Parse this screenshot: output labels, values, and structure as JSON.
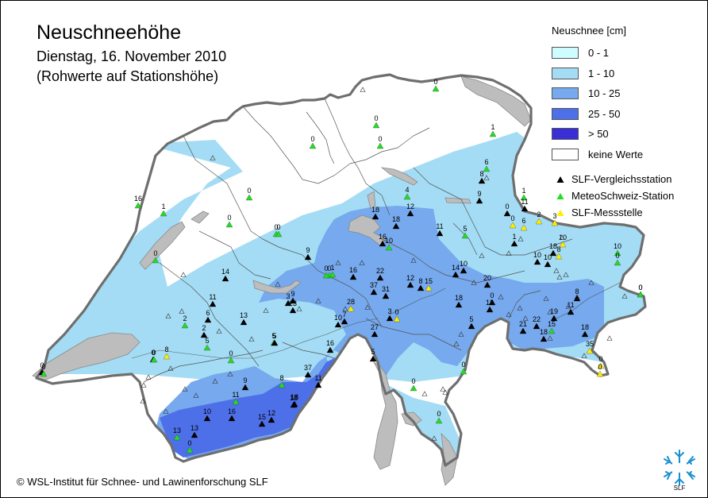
{
  "header": {
    "title": "Neuschneehöhe",
    "date": "Dienstag, 16. November 2010",
    "note": "(Rohwerte auf Stationshöhe)"
  },
  "legend": {
    "heading": "Neuschnee [cm]",
    "classes": [
      {
        "label": "0 - 1",
        "color": "#cffcff"
      },
      {
        "label": "1 - 10",
        "color": "#a3dcf4"
      },
      {
        "label": "10 - 25",
        "color": "#76a9ed"
      },
      {
        "label": "25 - 50",
        "color": "#4d6fe8"
      },
      {
        "label": "> 50",
        "color": "#3a2fd6"
      },
      {
        "label": "keine Werte",
        "color": "#ffffff"
      }
    ],
    "station_types": [
      {
        "label": "SLF-Vergleichsstation",
        "color": "#000000"
      },
      {
        "label": "MeteoSchweiz-Station",
        "color": "#22dd22"
      },
      {
        "label": "SLF-Messstelle",
        "color": "#ffee00"
      }
    ]
  },
  "colors": {
    "lake": "#bdbdbd",
    "border": "#6e6e6e",
    "canton_line": "#555555",
    "logo": "#1a8fd0"
  },
  "stations": [
    {
      "v": "0",
      "t": "G"
    },
    {
      "v": "0",
      "t": "G"
    },
    {
      "v": "0",
      "t": "G"
    },
    {
      "v": "0",
      "t": "G"
    },
    {
      "v": "1",
      "t": "G"
    },
    {
      "v": "16",
      "t": "G"
    },
    {
      "v": "1",
      "t": "G"
    },
    {
      "v": "0",
      "t": "G"
    },
    {
      "v": "0",
      "t": "G"
    },
    {
      "v": "0",
      "t": "G"
    },
    {
      "v": "0",
      "t": "G"
    },
    {
      "v": "0",
      "t": "G"
    },
    {
      "v": "9",
      "t": "B"
    },
    {
      "v": "14",
      "t": "B"
    },
    {
      "v": "11",
      "t": "B"
    },
    {
      "v": "6",
      "t": "B"
    },
    {
      "v": "2",
      "t": "G"
    },
    {
      "v": "2",
      "t": "B"
    },
    {
      "v": "5",
      "t": "G"
    },
    {
      "v": "13",
      "t": "B"
    },
    {
      "v": "0",
      "t": "G"
    },
    {
      "v": "8",
      "t": "Y"
    },
    {
      "v": "0",
      "t": "B"
    },
    {
      "v": "3",
      "t": "B"
    },
    {
      "v": "9",
      "t": "B"
    },
    {
      "v": "23",
      "t": "B"
    },
    {
      "v": "5",
      "t": "G"
    },
    {
      "v": "0",
      "t": "G"
    },
    {
      "v": "1",
      "t": "G"
    },
    {
      "v": "0",
      "t": "G"
    },
    {
      "v": "4",
      "t": "G"
    },
    {
      "v": "12",
      "t": "B"
    },
    {
      "v": "18",
      "t": "B"
    },
    {
      "v": "18",
      "t": "B"
    },
    {
      "v": "16",
      "t": "B"
    },
    {
      "v": "10",
      "t": "G"
    },
    {
      "v": "11",
      "t": "B"
    },
    {
      "v": "5",
      "t": "G"
    },
    {
      "v": "6",
      "t": "G"
    },
    {
      "v": "8",
      "t": "B"
    },
    {
      "v": "9",
      "t": "B"
    },
    {
      "v": "1",
      "t": "G"
    },
    {
      "v": "11",
      "t": "B"
    },
    {
      "v": "0",
      "t": "Y"
    },
    {
      "v": "0",
      "t": "B"
    },
    {
      "v": "6",
      "t": "Y"
    },
    {
      "v": "2",
      "t": "Y"
    },
    {
      "v": "3",
      "t": "Y"
    },
    {
      "v": "10",
      "t": "Y"
    },
    {
      "v": "1",
      "t": "B"
    },
    {
      "v": "10",
      "t": "B"
    },
    {
      "v": "18",
      "t": "B"
    },
    {
      "v": "8",
      "t": "Y"
    },
    {
      "v": "10",
      "t": "G"
    },
    {
      "v": "16",
      "t": "B"
    },
    {
      "v": "22",
      "t": "B"
    },
    {
      "v": "37",
      "t": "B"
    },
    {
      "v": "31",
      "t": "B"
    },
    {
      "v": "12",
      "t": "B"
    },
    {
      "v": "8",
      "t": "B"
    },
    {
      "v": "15",
      "t": "Y"
    },
    {
      "v": "10",
      "t": "B"
    },
    {
      "v": "14",
      "t": "B"
    },
    {
      "v": "20",
      "t": "B"
    },
    {
      "v": "0",
      "t": "B"
    },
    {
      "v": "10",
      "t": "B"
    },
    {
      "v": "0",
      "t": "B"
    },
    {
      "v": "28",
      "t": "Y"
    },
    {
      "v": "10",
      "t": "B"
    },
    {
      "v": "7",
      "t": "B"
    },
    {
      "v": "27",
      "t": "B"
    },
    {
      "v": "3",
      "t": "B"
    },
    {
      "v": "0",
      "t": "Y"
    },
    {
      "v": "18",
      "t": "B"
    },
    {
      "v": "13",
      "t": "B"
    },
    {
      "v": "5",
      "t": "B"
    },
    {
      "v": "5",
      "t": "B"
    },
    {
      "v": "0",
      "t": "G"
    },
    {
      "v": "8",
      "t": "B"
    },
    {
      "v": "19",
      "t": "B"
    },
    {
      "v": "18",
      "t": "B"
    },
    {
      "v": "11",
      "t": "B"
    },
    {
      "v": "21",
      "t": "B"
    },
    {
      "v": "22",
      "t": "B"
    },
    {
      "v": "15",
      "t": "G"
    },
    {
      "v": "18",
      "t": "B"
    },
    {
      "v": "35",
      "t": "Y"
    },
    {
      "v": "0",
      "t": "Y"
    },
    {
      "v": "0",
      "t": "Y"
    },
    {
      "v": "0",
      "t": "B"
    },
    {
      "v": "0",
      "t": "G"
    },
    {
      "v": "0",
      "t": "G"
    },
    {
      "v": "5",
      "t": "B"
    },
    {
      "v": "16",
      "t": "B"
    },
    {
      "v": "37",
      "t": "B"
    },
    {
      "v": "11",
      "t": "B"
    },
    {
      "v": "8",
      "t": "G"
    },
    {
      "v": "9",
      "t": "B"
    },
    {
      "v": "11",
      "t": "G"
    },
    {
      "v": "18",
      "t": "B"
    },
    {
      "v": "10",
      "t": "B"
    },
    {
      "v": "16",
      "t": "B"
    },
    {
      "v": "15",
      "t": "B"
    },
    {
      "v": "12",
      "t": "B"
    },
    {
      "v": "18",
      "t": "B"
    },
    {
      "v": "13",
      "t": "B"
    },
    {
      "v": "13",
      "t": "G"
    },
    {
      "v": "0",
      "t": "G"
    },
    {
      "v": "0",
      "t": "G"
    },
    {
      "v": "0",
      "t": "G"
    },
    {
      "v": "0",
      "t": "G"
    },
    {
      "v": "0",
      "t": "G"
    }
  ],
  "footer": {
    "copyright": "© WSL-Institut für Schnee- und Lawinenforschung SLF",
    "logo_text": "SLF"
  }
}
